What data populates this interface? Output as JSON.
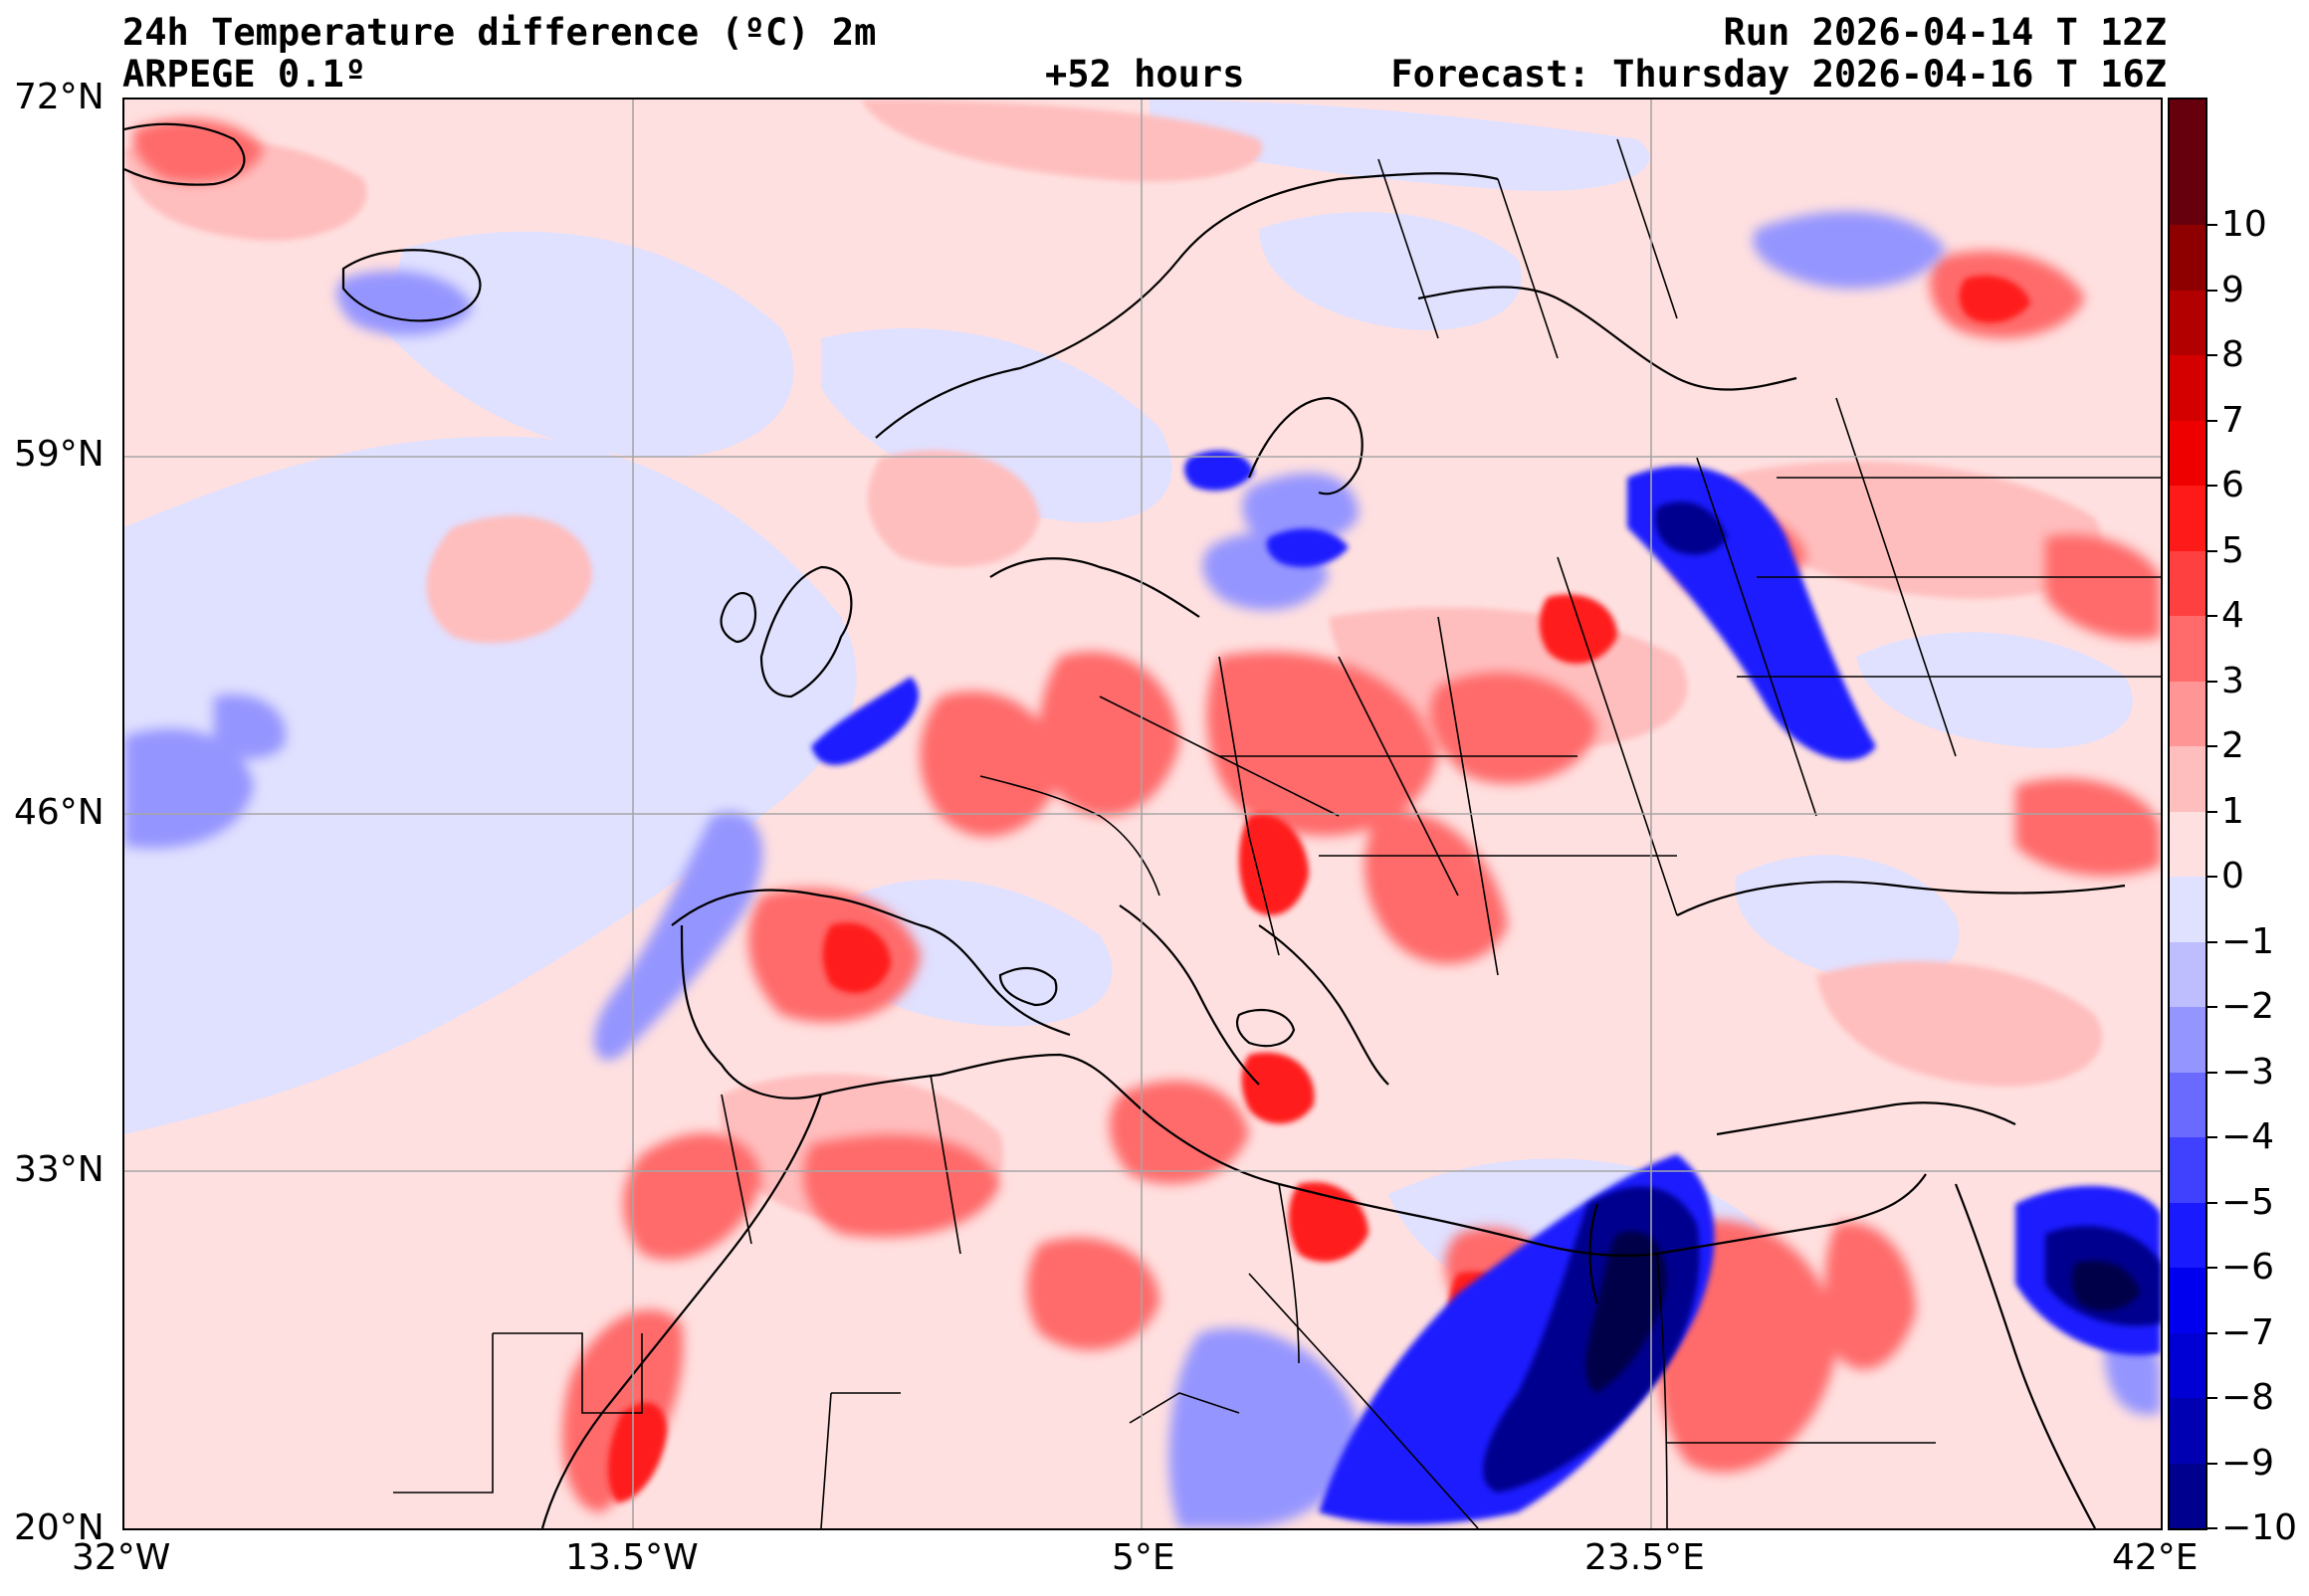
{
  "header": {
    "title": "24h Temperature difference (ºC) 2m",
    "model": "ARPEGE 0.1º",
    "run": "Run 2026-04-14 T 12Z",
    "lead": "+52 hours",
    "forecast": "Forecast: Thursday 2026-04-16 T 16Z"
  },
  "axes": {
    "lat_labels": [
      "72°N",
      "59°N",
      "46°N",
      "33°N",
      "20°N"
    ],
    "lon_labels": [
      "32°W",
      "13.5°W",
      "5°E",
      "23.5°E",
      "42°E"
    ]
  },
  "colorbar": {
    "tick_labels": [
      "10",
      "9",
      "8",
      "7",
      "6",
      "5",
      "4",
      "3",
      "2",
      "1",
      "0",
      "−1",
      "−2",
      "−3",
      "−4",
      "−5",
      "−6",
      "−7",
      "−8",
      "−9",
      "−10"
    ],
    "colors": [
      "#67000d",
      "#8e0000",
      "#b20000",
      "#d40000",
      "#ee0000",
      "#ff1a1a",
      "#ff4040",
      "#ff6a6a",
      "#ff9595",
      "#ffbebe",
      "#ffe0e0",
      "#e0e0ff",
      "#bebeff",
      "#9595ff",
      "#6a6aff",
      "#4040ff",
      "#1a1aff",
      "#0000ee",
      "#0000d4",
      "#0000b2",
      "#00008e",
      "#00004a"
    ]
  }
}
